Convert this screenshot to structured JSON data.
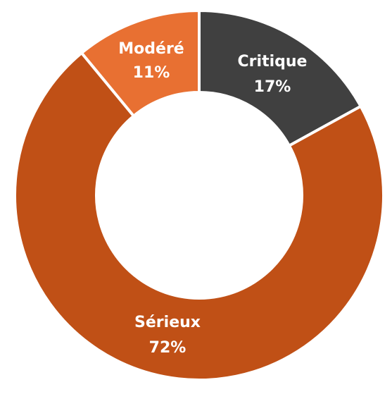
{
  "chart_data": {
    "type": "pie",
    "donut": true,
    "categories": [
      "Critique",
      "Sérieux",
      "Modéré"
    ],
    "values": [
      17,
      72,
      11
    ],
    "labels": [
      "17%",
      "72%",
      "11%"
    ],
    "colors": [
      "#404040",
      "#C05016",
      "#E87032"
    ],
    "title": "",
    "legend": "none"
  }
}
